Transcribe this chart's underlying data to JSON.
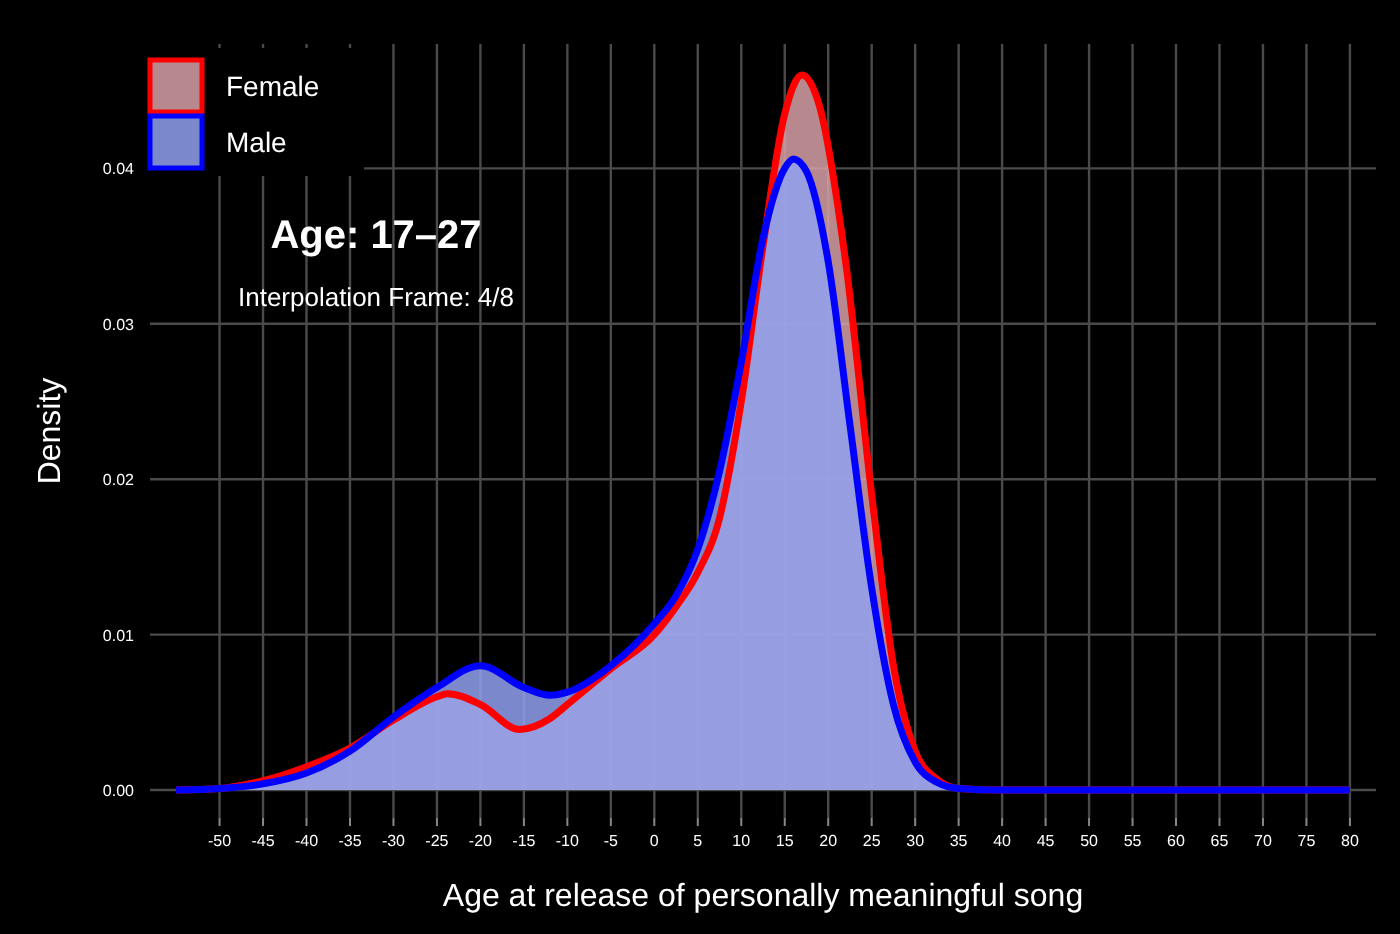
{
  "chart_data": {
    "type": "area",
    "title": "Age: 17–27",
    "subtitle": "Interpolation Frame: 4/8",
    "xlabel": "Age at release of personally meaningful song",
    "ylabel": "Density",
    "xlim": [
      -58,
      83
    ],
    "xticks": [
      -50,
      -45,
      -40,
      -35,
      -30,
      -25,
      -20,
      -15,
      -10,
      -5,
      0,
      5,
      10,
      15,
      20,
      25,
      30,
      35,
      40,
      45,
      50,
      55,
      60,
      65,
      70,
      75,
      80
    ],
    "ylim": [
      -0.0018,
      0.048
    ],
    "yticks": [
      {
        "value": 0,
        "label": "0.00"
      },
      {
        "value": 0.01,
        "label": "0.01"
      },
      {
        "value": 0.02,
        "label": "0.02"
      },
      {
        "value": 0.03,
        "label": "0.03"
      },
      {
        "value": 0.04,
        "label": "0.04"
      }
    ],
    "grid": true,
    "legend": "top left",
    "series": [
      {
        "name": "Female",
        "color": "#ff0000",
        "x": [
          -55,
          -50,
          -45,
          -40,
          -35,
          -30,
          -25,
          -23.8,
          -20,
          -15.5,
          -12,
          -10,
          -5,
          0,
          2.5,
          5,
          7.5,
          10,
          12.5,
          15,
          17,
          19,
          22,
          25,
          27.5,
          30,
          32.5,
          35,
          40,
          80
        ],
        "values": [
          0,
          0.0001,
          0.0006,
          0.0015,
          0.0027,
          0.0045,
          0.006,
          0.0062,
          0.0055,
          0.0039,
          0.0046,
          0.0055,
          0.0078,
          0.01,
          0.0118,
          0.014,
          0.0175,
          0.025,
          0.035,
          0.0435,
          0.046,
          0.044,
          0.034,
          0.019,
          0.008,
          0.0025,
          0.0007,
          0.0001,
          0,
          0
        ]
      },
      {
        "name": "Male",
        "color": "#0000ff",
        "x": [
          -55,
          -50,
          -45,
          -40,
          -35,
          -30,
          -25,
          -20,
          -15,
          -12,
          -10,
          -5,
          0,
          2.5,
          5,
          7.5,
          10,
          12.5,
          15,
          16,
          17.5,
          20,
          22.5,
          25,
          27.5,
          30,
          32.5,
          35,
          40,
          80
        ],
        "values": [
          0,
          0.0001,
          0.0004,
          0.0011,
          0.0025,
          0.0047,
          0.0066,
          0.008,
          0.0066,
          0.0061,
          0.0063,
          0.008,
          0.0107,
          0.0125,
          0.0155,
          0.0205,
          0.0275,
          0.0355,
          0.04,
          0.0406,
          0.0398,
          0.034,
          0.0235,
          0.013,
          0.0055,
          0.0018,
          0.0005,
          0.0001,
          0,
          0
        ]
      }
    ]
  }
}
